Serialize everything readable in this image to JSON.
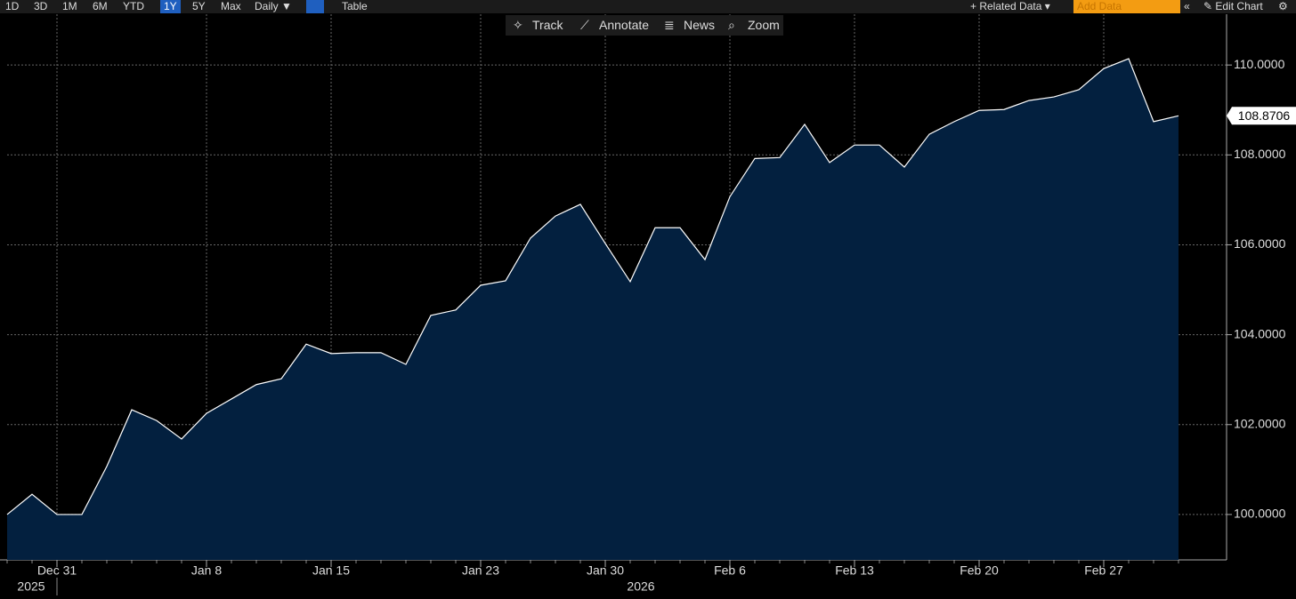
{
  "toolbar": {
    "ranges": [
      {
        "label": "1D"
      },
      {
        "label": "3D"
      },
      {
        "label": "1M"
      },
      {
        "label": "6M"
      },
      {
        "label": "YTD"
      },
      {
        "label": "1Y",
        "active": true
      },
      {
        "label": "5Y"
      },
      {
        "label": "Max"
      }
    ],
    "frequency": "Daily ▼",
    "table": "Table",
    "related": "+ Related Data ▾",
    "add_data": "Add Data",
    "edit": "Edit Chart"
  },
  "chart_tools": [
    "Track",
    "Annotate",
    "News",
    "Zoom"
  ],
  "chart_data": {
    "type": "area",
    "color": "#03203f",
    "line_color": "#ffffff",
    "categories": [
      null,
      null,
      "Dec 31",
      null,
      null,
      null,
      null,
      null,
      "Jan 8",
      null,
      null,
      null,
      null,
      "Jan 15",
      null,
      null,
      null,
      null,
      null,
      "Jan 23",
      null,
      null,
      null,
      null,
      "Jan 30",
      null,
      null,
      null,
      null,
      "Feb 6",
      null,
      null,
      null,
      null,
      "Feb 13",
      null,
      null,
      null,
      null,
      "Feb 20",
      null,
      null,
      null,
      null,
      "Feb 27",
      null,
      null,
      null
    ],
    "years": [
      "2025",
      "2026"
    ],
    "values": [
      100.0,
      100.45,
      100.0,
      100.0,
      101.07,
      102.33,
      102.09,
      101.68,
      102.25,
      102.57,
      102.89,
      103.02,
      103.79,
      103.58,
      103.6,
      103.6,
      103.34,
      104.43,
      104.55,
      105.1,
      105.2,
      106.15,
      106.64,
      106.9,
      106.03,
      105.18,
      106.38,
      106.38,
      105.67,
      107.07,
      107.92,
      107.94,
      108.68,
      107.83,
      108.22,
      108.22,
      107.73,
      108.46,
      108.74,
      108.99,
      109.01,
      109.21,
      109.29,
      109.45,
      109.92,
      110.14,
      108.74,
      108.8706
    ],
    "ylim": [
      98.99,
      111.13
    ],
    "yticks": [
      {
        "value": 100,
        "label": "100.0000"
      },
      {
        "value": 102,
        "label": "102.0000"
      },
      {
        "value": 104,
        "label": "104.0000"
      },
      {
        "value": 106,
        "label": "106.0000"
      },
      {
        "value": 108,
        "label": "108.0000"
      },
      {
        "value": 110,
        "label": "110.0000"
      }
    ],
    "grid": true
  }
}
